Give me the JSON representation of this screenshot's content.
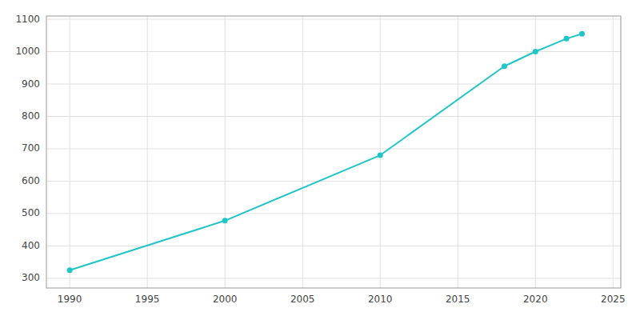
{
  "chart_data": {
    "type": "line",
    "x": [
      1990,
      2000,
      2010,
      2018,
      2020,
      2022,
      2023
    ],
    "values": [
      325,
      478,
      680,
      955,
      1000,
      1040,
      1055
    ],
    "color": "#20C5C8",
    "marker": "circle",
    "xlim": [
      1988.5,
      2025.5
    ],
    "ylim": [
      270,
      1110
    ],
    "xticks": [
      1990,
      1995,
      2000,
      2005,
      2010,
      2015,
      2020,
      2025
    ],
    "yticks": [
      300,
      400,
      500,
      600,
      700,
      800,
      900,
      1000,
      1100
    ],
    "grid": true
  }
}
